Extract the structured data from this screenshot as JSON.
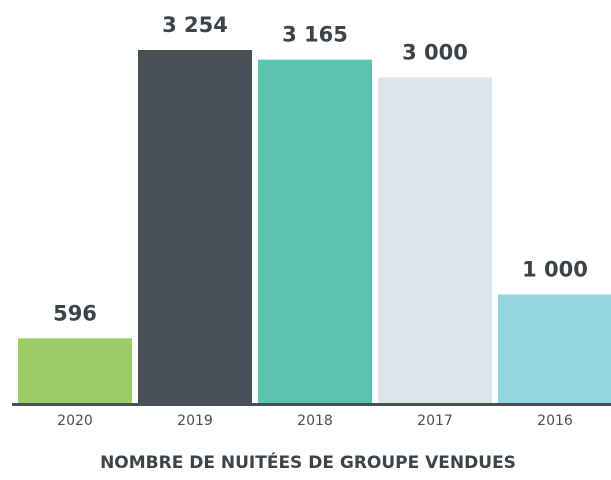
{
  "chart_data": {
    "type": "bar",
    "title": "NOMBRE DE NUITÉES DE GROUPE VENDUES",
    "categories": [
      "2020",
      "2019",
      "2018",
      "2017",
      "2016"
    ],
    "values": [
      596,
      3254,
      3165,
      3000,
      1000
    ],
    "value_labels": [
      "596",
      "3 254",
      "3 165",
      "3 000",
      "1 000"
    ],
    "colors": [
      "#9ccc65",
      "#4a5057",
      "#5bc4b0",
      "#dce6ea",
      "#94d6df"
    ]
  }
}
